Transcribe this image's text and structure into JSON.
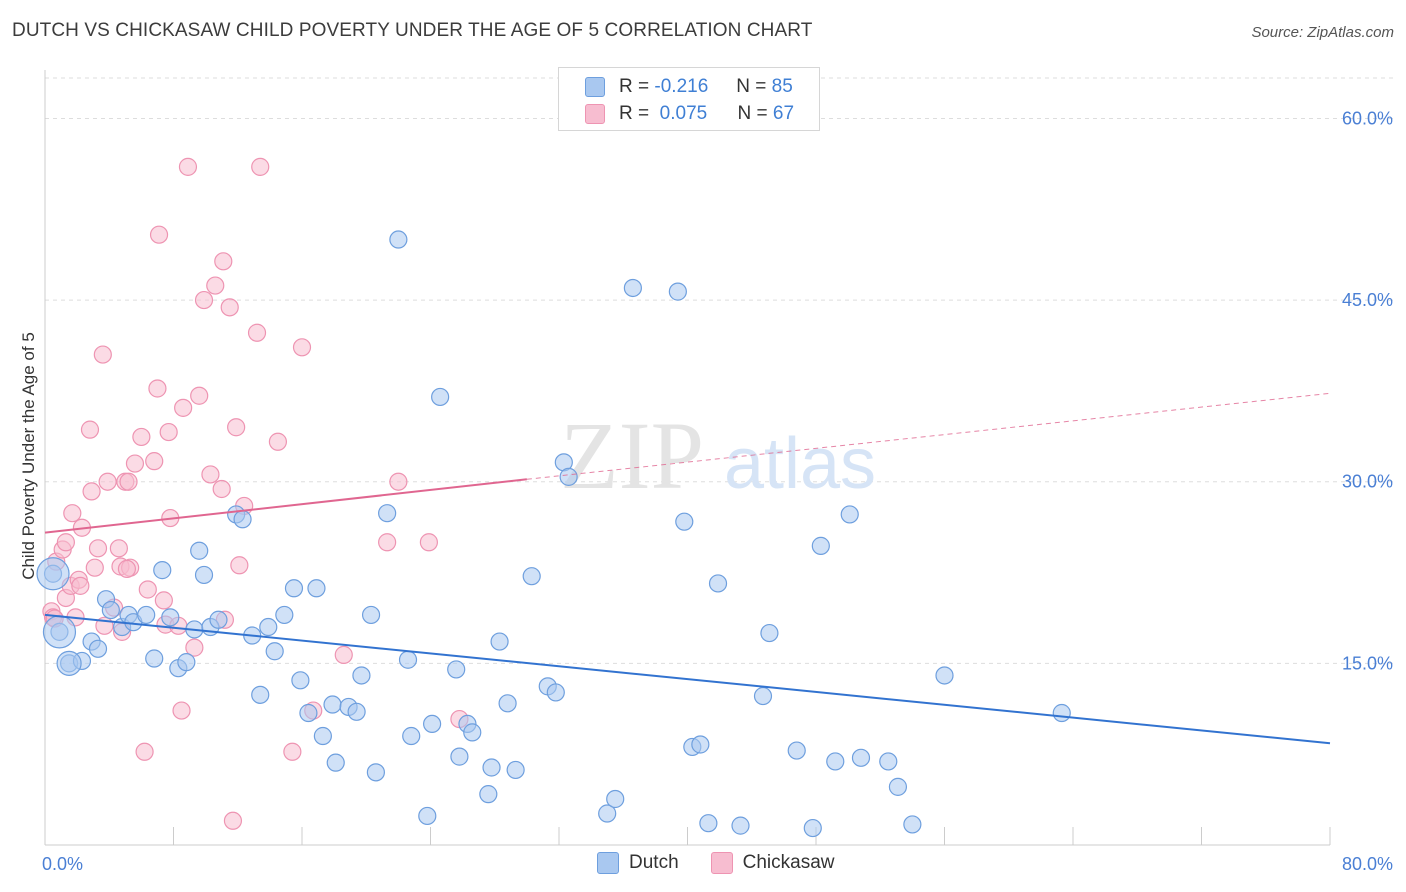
{
  "title": "DUTCH VS CHICKASAW CHILD POVERTY UNDER THE AGE OF 5 CORRELATION CHART",
  "source": "Source: ZipAtlas.com",
  "watermark": {
    "zip": "ZIP",
    "atlas": "atlas"
  },
  "legend": {
    "rows": [
      {
        "r_label": "R =",
        "r_value": "-0.216",
        "n_label": "N =",
        "n_value": "85"
      },
      {
        "r_label": "R =",
        "r_value": "0.075",
        "n_label": "N =",
        "n_value": "67"
      }
    ]
  },
  "bottom_legend": {
    "dutch": "Dutch",
    "chickasaw": "Chickasaw"
  },
  "colors": {
    "dutch_fill": "#a9c8f0",
    "dutch_stroke": "#6e9fde",
    "dutch_line": "#3273d0",
    "chick_fill": "#f7bdd0",
    "chick_stroke": "#ee94b2",
    "chick_line": "#e06690",
    "tick_text": "#4a7fd4",
    "grid": "#dddddd"
  },
  "chart_data": {
    "type": "scatter",
    "title": "DUTCH VS CHICKASAW CHILD POVERTY UNDER THE AGE OF 5 CORRELATION CHART",
    "xlabel": "",
    "ylabel": "Child Poverty Under the Age of 5",
    "xlim": [
      0,
      80
    ],
    "ylim": [
      0,
      64
    ],
    "x_tick_labels": [
      {
        "value": 0,
        "label": "0.0%"
      },
      {
        "value": 80,
        "label": "80.0%"
      }
    ],
    "y_ticks": [
      {
        "value": 15,
        "label": "15.0%"
      },
      {
        "value": 30,
        "label": "30.0%"
      },
      {
        "value": 45,
        "label": "45.0%"
      },
      {
        "value": 60,
        "label": "60.0%"
      }
    ],
    "grid": true,
    "legend_position": "top-center",
    "series": [
      {
        "name": "Dutch",
        "r": -0.216,
        "n": 85,
        "trend": {
          "x": [
            0,
            80
          ],
          "y": [
            19.0,
            8.4
          ]
        },
        "points": [
          [
            0.5,
            22.4
          ],
          [
            0.9,
            17.6
          ],
          [
            1.5,
            15
          ],
          [
            2.3,
            15.2
          ],
          [
            2.9,
            16.8
          ],
          [
            3.3,
            16.2
          ],
          [
            3.8,
            20.3
          ],
          [
            4.1,
            19.4
          ],
          [
            4.8,
            18
          ],
          [
            5.2,
            19
          ],
          [
            5.5,
            18.4
          ],
          [
            6.3,
            19
          ],
          [
            6.8,
            15.4
          ],
          [
            7.3,
            22.7
          ],
          [
            7.8,
            18.8
          ],
          [
            8.3,
            14.6
          ],
          [
            8.8,
            15.1
          ],
          [
            9.3,
            17.8
          ],
          [
            9.6,
            24.3
          ],
          [
            9.9,
            22.3
          ],
          [
            10.3,
            18
          ],
          [
            10.8,
            18.6
          ],
          [
            11.9,
            27.3
          ],
          [
            12.3,
            26.9
          ],
          [
            12.9,
            17.3
          ],
          [
            13.4,
            12.4
          ],
          [
            13.9,
            18
          ],
          [
            14.3,
            16
          ],
          [
            14.9,
            19
          ],
          [
            15.5,
            21.2
          ],
          [
            15.9,
            13.6
          ],
          [
            16.4,
            10.9
          ],
          [
            16.9,
            21.2
          ],
          [
            17.3,
            9
          ],
          [
            17.9,
            11.6
          ],
          [
            18.1,
            6.8
          ],
          [
            18.9,
            11.4
          ],
          [
            19.4,
            11
          ],
          [
            19.7,
            14
          ],
          [
            20.3,
            19
          ],
          [
            20.6,
            6
          ],
          [
            21.3,
            27.4
          ],
          [
            22,
            50
          ],
          [
            22.6,
            15.3
          ],
          [
            22.8,
            9
          ],
          [
            23.8,
            2.4
          ],
          [
            24.1,
            10
          ],
          [
            24.6,
            37
          ],
          [
            25.6,
            14.5
          ],
          [
            25.8,
            7.3
          ],
          [
            26.3,
            10
          ],
          [
            26.6,
            9.3
          ],
          [
            27.6,
            4.2
          ],
          [
            27.8,
            6.4
          ],
          [
            28.3,
            16.8
          ],
          [
            28.8,
            11.7
          ],
          [
            29.3,
            6.2
          ],
          [
            30.3,
            22.2
          ],
          [
            31.3,
            13.1
          ],
          [
            31.8,
            12.6
          ],
          [
            32.3,
            31.6
          ],
          [
            32.6,
            30.4
          ],
          [
            35,
            2.6
          ],
          [
            35.5,
            3.8
          ],
          [
            36.6,
            46
          ],
          [
            39.4,
            45.7
          ],
          [
            39.8,
            26.7
          ],
          [
            40.3,
            8.1
          ],
          [
            40.8,
            8.3
          ],
          [
            41.3,
            1.8
          ],
          [
            41.9,
            21.6
          ],
          [
            43.3,
            1.6
          ],
          [
            44.7,
            12.3
          ],
          [
            45.1,
            17.5
          ],
          [
            46.8,
            7.8
          ],
          [
            47.8,
            1.4
          ],
          [
            48.3,
            24.7
          ],
          [
            49.2,
            6.9
          ],
          [
            50.1,
            27.3
          ],
          [
            50.8,
            7.2
          ],
          [
            52.5,
            6.9
          ],
          [
            53.1,
            4.8
          ],
          [
            54,
            1.7
          ],
          [
            63.3,
            10.9
          ],
          [
            56,
            14
          ]
        ]
      },
      {
        "name": "Chickasaw",
        "r": 0.075,
        "n": 67,
        "trend": {
          "x": [
            0,
            30
          ],
          "y": [
            25.8,
            30.2
          ]
        },
        "trend_dashed": {
          "x": [
            30,
            80
          ],
          "y": [
            30.2,
            37.3
          ]
        },
        "points": [
          [
            0.4,
            19.3
          ],
          [
            0.5,
            18.8
          ],
          [
            0.6,
            18.7
          ],
          [
            0.7,
            23.4
          ],
          [
            1.1,
            24.4
          ],
          [
            1.3,
            20.4
          ],
          [
            1.3,
            25
          ],
          [
            1.6,
            21.4
          ],
          [
            1.7,
            27.4
          ],
          [
            1.9,
            18.8
          ],
          [
            2.1,
            21.9
          ],
          [
            2.2,
            21.4
          ],
          [
            2.3,
            26.2
          ],
          [
            2.8,
            34.3
          ],
          [
            2.9,
            29.2
          ],
          [
            3.1,
            22.9
          ],
          [
            3.3,
            24.5
          ],
          [
            3.6,
            40.5
          ],
          [
            3.9,
            30
          ],
          [
            4.3,
            19.6
          ],
          [
            4.6,
            24.5
          ],
          [
            4.7,
            23
          ],
          [
            4.8,
            17.6
          ],
          [
            5,
            30
          ],
          [
            5.2,
            30
          ],
          [
            5.3,
            22.9
          ],
          [
            5.6,
            31.5
          ],
          [
            6,
            33.7
          ],
          [
            6.2,
            7.7
          ],
          [
            6.4,
            21.1
          ],
          [
            6.8,
            31.7
          ],
          [
            7,
            37.7
          ],
          [
            7.1,
            50.4
          ],
          [
            7.4,
            20.2
          ],
          [
            7.5,
            18.2
          ],
          [
            7.7,
            34.1
          ],
          [
            7.8,
            27
          ],
          [
            8.3,
            18.1
          ],
          [
            8.5,
            11.1
          ],
          [
            8.6,
            36.1
          ],
          [
            8.9,
            56
          ],
          [
            9.3,
            16.3
          ],
          [
            9.6,
            37.1
          ],
          [
            9.9,
            45
          ],
          [
            10.3,
            30.6
          ],
          [
            10.6,
            46.2
          ],
          [
            11,
            29.4
          ],
          [
            11.1,
            48.2
          ],
          [
            11.2,
            18.6
          ],
          [
            11.5,
            44.4
          ],
          [
            11.7,
            2
          ],
          [
            11.9,
            34.5
          ],
          [
            12.1,
            23.1
          ],
          [
            12.4,
            28
          ],
          [
            13.2,
            42.3
          ],
          [
            13.4,
            56
          ],
          [
            14.5,
            33.3
          ],
          [
            15.4,
            7.7
          ],
          [
            16,
            41.1
          ],
          [
            16.7,
            11.1
          ],
          [
            18.6,
            15.7
          ],
          [
            21.3,
            25
          ],
          [
            22,
            30
          ],
          [
            23.9,
            25
          ],
          [
            25.8,
            10.4
          ],
          [
            5.1,
            22.8
          ],
          [
            3.7,
            18.1
          ]
        ]
      }
    ]
  }
}
